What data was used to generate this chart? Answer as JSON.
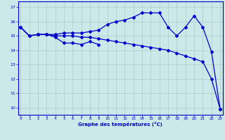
{
  "xlabel": "Graphe des températures (°C)",
  "background_color": "#cce8e8",
  "grid_color": "#aacccc",
  "line_color": "#0000cc",
  "hours": [
    0,
    1,
    2,
    3,
    4,
    5,
    6,
    7,
    8,
    9,
    10,
    11,
    12,
    13,
    14,
    15,
    16,
    17,
    18,
    19,
    20,
    21,
    22,
    23
  ],
  "series_long_upper": [
    15.6,
    15.0,
    15.1,
    15.1,
    15.1,
    15.2,
    15.2,
    15.2,
    15.3,
    15.4,
    15.8,
    16.0,
    16.1,
    16.3,
    16.6,
    16.6,
    16.6,
    15.6,
    15.0,
    15.6,
    16.4,
    15.6,
    13.9,
    9.9
  ],
  "series_diag": [
    15.6,
    15.0,
    15.1,
    15.1,
    15.0,
    15.0,
    15.0,
    14.9,
    14.9,
    14.8,
    14.7,
    14.6,
    14.5,
    14.4,
    14.3,
    14.2,
    14.1,
    14.0,
    13.8,
    13.6,
    13.4,
    13.2,
    12.0,
    9.9
  ],
  "series_short": [
    15.6,
    15.0,
    15.1,
    15.1,
    14.9,
    14.5,
    14.5,
    14.4,
    14.6,
    14.4,
    null,
    null,
    null,
    null,
    null,
    null,
    null,
    null,
    null,
    null,
    null,
    null,
    null,
    null
  ],
  "ylim": [
    9.5,
    17.4
  ],
  "yticks": [
    10,
    11,
    12,
    13,
    14,
    15,
    16,
    17
  ],
  "xlim": [
    -0.3,
    23.3
  ],
  "xticks": [
    0,
    1,
    2,
    3,
    4,
    5,
    6,
    7,
    8,
    9,
    10,
    11,
    12,
    13,
    14,
    15,
    16,
    17,
    18,
    19,
    20,
    21,
    22,
    23
  ]
}
